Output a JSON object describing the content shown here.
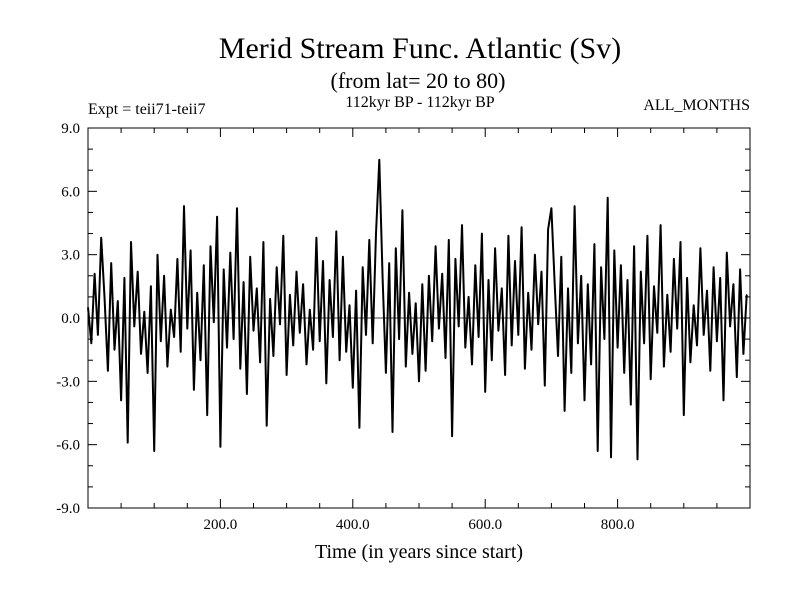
{
  "chart_data": {
    "type": "line",
    "title": "Merid Stream Func. Atlantic (Sv)",
    "subtitle": "(from lat= 20 to 80)",
    "expt_label": "Expt = teii71-teii7",
    "period_label": "112kyr BP - 112kyr BP",
    "months_label": "ALL_MONTHS",
    "xlabel": "Time (in years since start)",
    "ylabel": "",
    "xlim": [
      0,
      1000
    ],
    "ylim": [
      -9,
      9
    ],
    "x_ticks": [
      200,
      400,
      600,
      800
    ],
    "x_tick_labels": [
      "200.0",
      "400.0",
      "600.0",
      "800.0"
    ],
    "y_ticks": [
      -9,
      -6,
      -3,
      0,
      3,
      6,
      9
    ],
    "y_tick_labels": [
      "-9.0",
      "-6.0",
      "-3.0",
      "0.0",
      "3.0",
      "6.0",
      "9.0"
    ],
    "zero_line": true,
    "line_color": "#000000",
    "series": [
      {
        "x": [
          0,
          5,
          10,
          15,
          20,
          25,
          30,
          35,
          40,
          45,
          50,
          55,
          60,
          65,
          70,
          75,
          80,
          85,
          90,
          95,
          100,
          105,
          110,
          115,
          120,
          125,
          130,
          135,
          140,
          145,
          150,
          155,
          160,
          165,
          170,
          175,
          180,
          185,
          190,
          195,
          200,
          205,
          210,
          215,
          220,
          225,
          230,
          235,
          240,
          245,
          250,
          255,
          260,
          265,
          270,
          275,
          280,
          285,
          290,
          295,
          300,
          305,
          310,
          315,
          320,
          325,
          330,
          335,
          340,
          345,
          350,
          355,
          360,
          365,
          370,
          375,
          380,
          385,
          390,
          395,
          400,
          405,
          410,
          415,
          420,
          425,
          430,
          435,
          440,
          445,
          450,
          455,
          460,
          465,
          470,
          475,
          480,
          485,
          490,
          495,
          500,
          505,
          510,
          515,
          520,
          525,
          530,
          535,
          540,
          545,
          550,
          555,
          560,
          565,
          570,
          575,
          580,
          585,
          590,
          595,
          600,
          605,
          610,
          615,
          620,
          625,
          630,
          635,
          640,
          645,
          650,
          655,
          660,
          665,
          670,
          675,
          680,
          685,
          690,
          695,
          700,
          705,
          710,
          715,
          720,
          725,
          730,
          735,
          740,
          745,
          750,
          755,
          760,
          765,
          770,
          775,
          780,
          785,
          790,
          795,
          800,
          805,
          810,
          815,
          820,
          825,
          830,
          835,
          840,
          845,
          850,
          855,
          860,
          865,
          870,
          875,
          880,
          885,
          890,
          895,
          900,
          905,
          910,
          915,
          920,
          925,
          930,
          935,
          940,
          945,
          950,
          955,
          960,
          965,
          970,
          975,
          980,
          985,
          990,
          995
        ],
        "y": [
          0.5,
          -1.2,
          2.1,
          -0.8,
          3.8,
          1.0,
          -2.5,
          2.6,
          -1.5,
          0.8,
          -3.9,
          1.9,
          -5.9,
          3.6,
          -0.4,
          2.2,
          -1.7,
          0.3,
          -2.6,
          1.5,
          -6.3,
          3.0,
          -1.1,
          2.0,
          -2.3,
          0.4,
          -0.9,
          2.8,
          -1.6,
          5.3,
          -0.5,
          3.2,
          -3.4,
          1.2,
          -2.0,
          2.5,
          -4.6,
          3.4,
          -0.2,
          4.8,
          -6.1,
          2.3,
          -1.4,
          3.1,
          -1.0,
          5.2,
          -2.4,
          1.7,
          -3.6,
          2.9,
          -0.6,
          1.4,
          -2.1,
          3.6,
          -5.1,
          0.9,
          -1.8,
          2.4,
          -0.3,
          3.9,
          -2.7,
          1.1,
          -1.3,
          2.2,
          -0.7,
          1.6,
          -2.2,
          0.4,
          -1.5,
          3.8,
          -1.1,
          2.7,
          -3.1,
          1.8,
          -0.9,
          4.1,
          -2.0,
          2.9,
          -1.6,
          0.6,
          -3.3,
          1.3,
          -5.2,
          2.4,
          -0.8,
          3.7,
          -1.2,
          4.0,
          7.5,
          1.9,
          -2.6,
          2.6,
          -5.4,
          3.3,
          -1.0,
          5.1,
          -2.3,
          1.2,
          -1.7,
          0.7,
          -3.0,
          1.6,
          -2.5,
          2.0,
          -1.1,
          3.4,
          -0.5,
          2.1,
          -1.9,
          3.7,
          -5.6,
          2.8,
          -0.4,
          4.4,
          -1.4,
          1.0,
          -2.2,
          2.5,
          -0.9,
          4.0,
          -3.5,
          1.8,
          -2.0,
          3.3,
          -0.6,
          1.4,
          -2.7,
          3.9,
          -1.3,
          2.7,
          -0.8,
          4.3,
          -2.4,
          1.2,
          -1.5,
          3.0,
          -0.3,
          2.2,
          -3.2,
          4.2,
          5.2,
          1.6,
          -1.8,
          2.9,
          -4.4,
          1.4,
          -2.6,
          5.3,
          -1.2,
          2.0,
          -3.9,
          1.6,
          -2.2,
          3.5,
          -6.3,
          2.4,
          -1.0,
          5.7,
          -6.6,
          3.2,
          -1.4,
          2.5,
          -2.6,
          1.8,
          -4.1,
          3.4,
          -6.7,
          2.2,
          -1.2,
          3.9,
          -2.9,
          1.5,
          -0.7,
          4.4,
          -2.3,
          1.1,
          -1.6,
          2.8,
          -0.5,
          3.6,
          -4.6,
          1.9,
          -2.1,
          0.6,
          -1.3,
          3.3,
          -0.8,
          1.3,
          -2.5,
          2.4,
          -1.1,
          1.9,
          -3.9,
          3.1,
          -0.4,
          1.6,
          -2.8,
          2.3,
          -1.7,
          1.1
        ]
      }
    ]
  }
}
